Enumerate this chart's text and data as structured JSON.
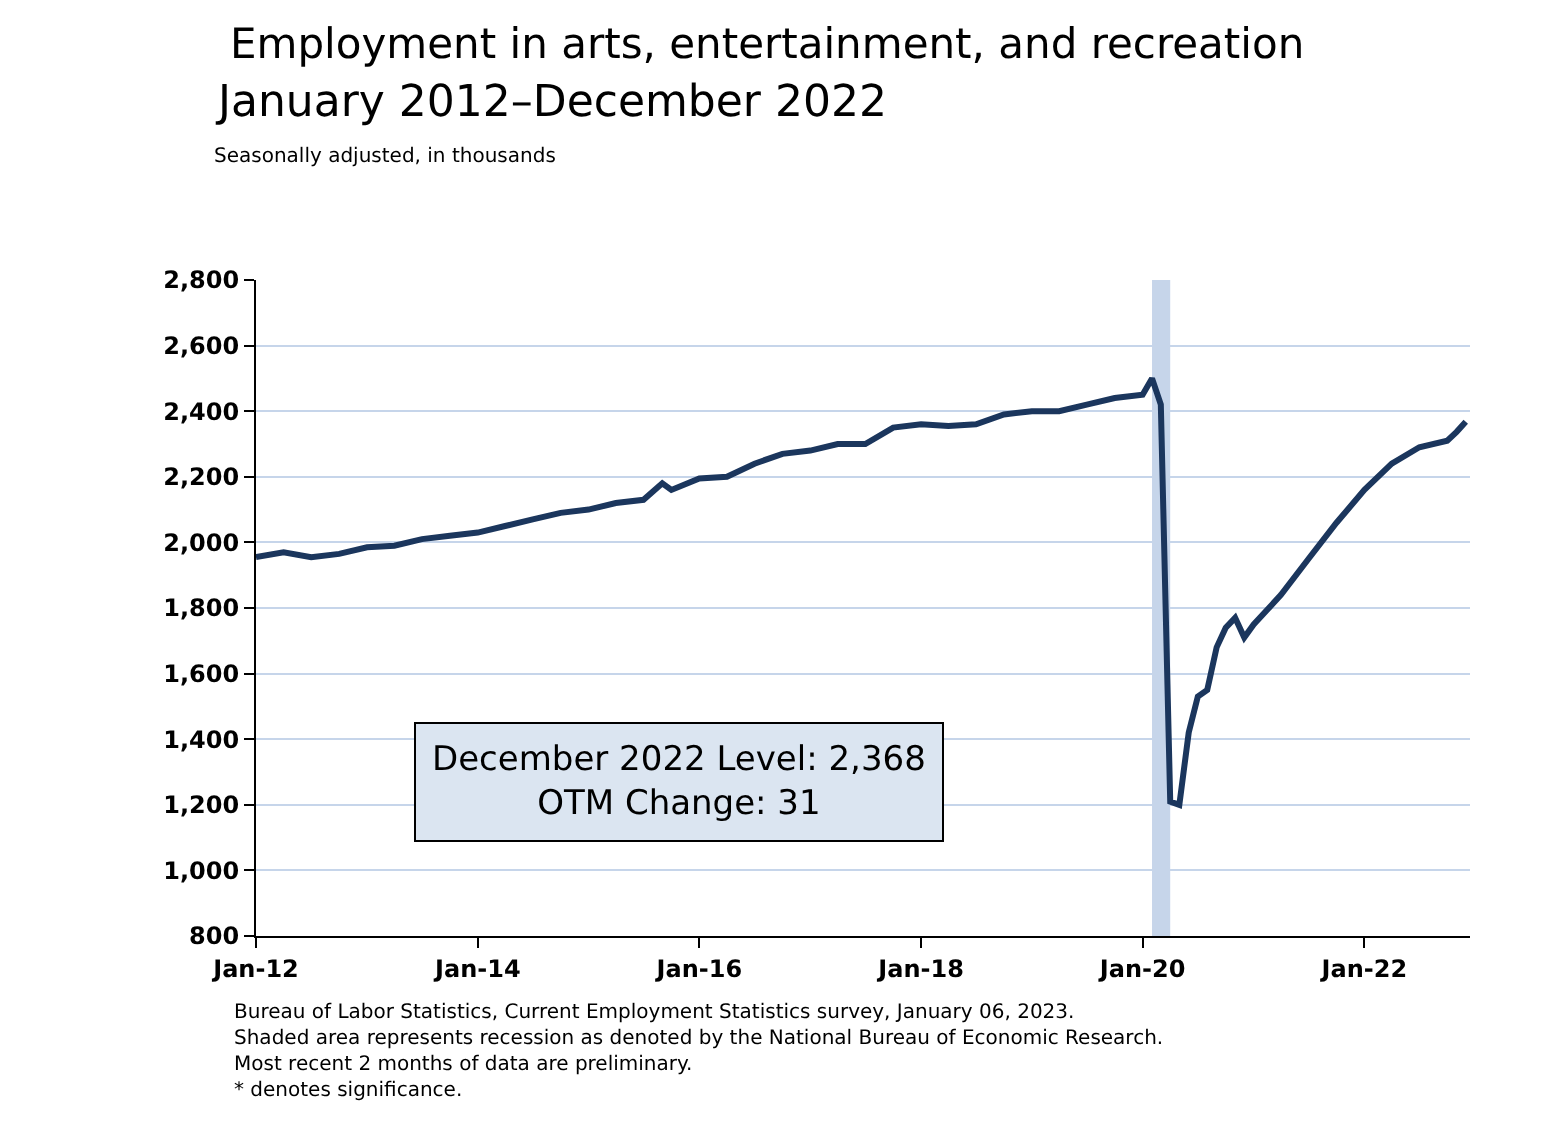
{
  "chart_data": {
    "type": "line",
    "title": "Employment in arts, entertainment, and recreation",
    "subtitle": "January 2012–December 2022",
    "annotations": [
      "Seasonally adjusted, in thousands",
      "December 2022 Level: 2,368\nOTM Change: 31",
      "Bureau of Labor Statistics, Current Employment Statistics survey, January 06, 2023.\nShaded area represents recession as denoted by the National Bureau of Economic Research.\nMost recent 2 months of data are preliminary.\n* denotes significance."
    ],
    "x": [
      "2012-01",
      "2012-04",
      "2012-07",
      "2012-10",
      "2013-01",
      "2013-04",
      "2013-07",
      "2013-10",
      "2014-01",
      "2014-04",
      "2014-07",
      "2014-10",
      "2015-01",
      "2015-04",
      "2015-07",
      "2015-09",
      "2015-10",
      "2016-01",
      "2016-04",
      "2016-07",
      "2016-10",
      "2017-01",
      "2017-04",
      "2017-07",
      "2017-10",
      "2018-01",
      "2018-04",
      "2018-07",
      "2018-10",
      "2019-01",
      "2019-04",
      "2019-07",
      "2019-10",
      "2020-01",
      "2020-02",
      "2020-03",
      "2020-04",
      "2020-05",
      "2020-06",
      "2020-07",
      "2020-08",
      "2020-09",
      "2020-10",
      "2020-11",
      "2020-12",
      "2021-01",
      "2021-04",
      "2021-07",
      "2021-10",
      "2022-01",
      "2022-04",
      "2022-07",
      "2022-10",
      "2022-11",
      "2022-12"
    ],
    "series": [
      {
        "color": "#1b365d",
        "values": [
          1955,
          1970,
          1955,
          1965,
          1985,
          1990,
          2010,
          2020,
          2030,
          2050,
          2070,
          2090,
          2100,
          2120,
          2130,
          2180,
          2160,
          2195,
          2200,
          2240,
          2270,
          2280,
          2300,
          2300,
          2350,
          2360,
          2355,
          2360,
          2390,
          2400,
          2400,
          2420,
          2440,
          2450,
          2500,
          2420,
          1210,
          1200,
          1420,
          1530,
          1550,
          1680,
          1740,
          1770,
          1710,
          1750,
          1840,
          1950,
          2060,
          2160,
          2240,
          2290,
          2310,
          2337,
          2368
        ]
      }
    ],
    "xlim": [
      "2012-01-01",
      "2022-12-15"
    ],
    "xticks": [
      {
        "value": "2012-01",
        "label": "Jan-12"
      },
      {
        "value": "2014-01",
        "label": "Jan-14"
      },
      {
        "value": "2016-01",
        "label": "Jan-16"
      },
      {
        "value": "2018-01",
        "label": "Jan-18"
      },
      {
        "value": "2020-01",
        "label": "Jan-20"
      },
      {
        "value": "2022-01",
        "label": "Jan-22"
      }
    ],
    "ylim": [
      800,
      2800
    ],
    "yticks": [
      {
        "value": 800,
        "label": "800"
      },
      {
        "value": 1000,
        "label": "1,000"
      },
      {
        "value": 1200,
        "label": "1,200"
      },
      {
        "value": 1400,
        "label": "1,400"
      },
      {
        "value": 1600,
        "label": "1,600"
      },
      {
        "value": 1800,
        "label": "1,800"
      },
      {
        "value": 2000,
        "label": "2,000"
      },
      {
        "value": 2200,
        "label": "2,200"
      },
      {
        "value": 2400,
        "label": "2,400"
      },
      {
        "value": 2600,
        "label": "2,600"
      },
      {
        "value": 2800,
        "label": "2,800"
      }
    ],
    "bands": [
      {
        "axis": "x",
        "from": "2020-02",
        "to": "2020-04",
        "color": "#c6d5ea"
      }
    ],
    "grid": "y",
    "legend": false,
    "marker": "none",
    "line_style": "solid"
  }
}
